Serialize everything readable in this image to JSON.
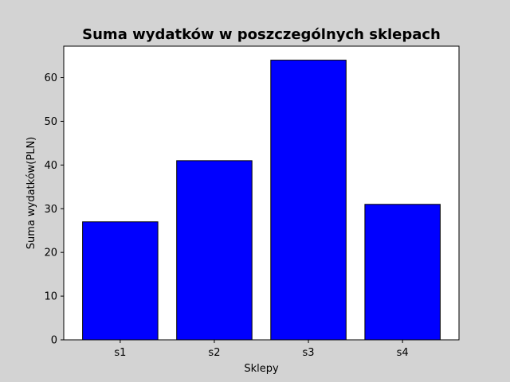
{
  "chart_data": {
    "type": "bar",
    "title": "Suma wydatków w poszczególnych sklepach",
    "xlabel": "Sklepy",
    "ylabel": "Suma wydatków(PLN)",
    "categories": [
      "s1",
      "s2",
      "s3",
      "s4"
    ],
    "values": [
      27,
      41,
      64,
      31
    ],
    "ylim": [
      0,
      67.2
    ],
    "yticks": [
      0,
      10,
      20,
      30,
      40,
      50,
      60
    ],
    "grid": false,
    "colors": {
      "bar": "#0000ff",
      "bar_edge": "#000000",
      "figure_background": "#d3d3d3",
      "plot_background": "#ffffff"
    }
  }
}
